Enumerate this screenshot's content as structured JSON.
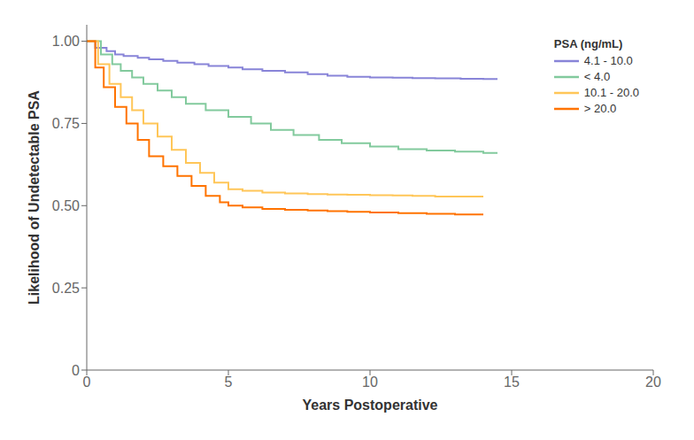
{
  "chart_data": {
    "type": "step",
    "x_label": "Years Postoperative",
    "y_label": "Likelihood of Undetectable PSA",
    "xlim": [
      0,
      20
    ],
    "ylim": [
      0,
      1.05
    ],
    "xticks": [
      0,
      5,
      10,
      15,
      20
    ],
    "yticks": [
      0,
      0.25,
      {
        "value": 0.5,
        "label": "0.50"
      },
      0.75,
      {
        "value": 1.0,
        "label": "1.00"
      }
    ],
    "grid": false,
    "legend": "upper right",
    "legend_title": "PSA (ng/mL)",
    "series": [
      {
        "name": "4.1 - 10.0",
        "color": "#8884d8",
        "x": [
          0,
          0.3,
          0.3,
          0.7,
          0.7,
          1.0,
          1.0,
          1.3,
          1.3,
          1.8,
          1.8,
          2.2,
          2.2,
          2.7,
          2.7,
          3.2,
          3.2,
          3.8,
          3.8,
          4.3,
          4.3,
          5.0,
          5.0,
          5.5,
          5.5,
          6.2,
          6.2,
          7.0,
          7.0,
          7.8,
          7.8,
          8.5,
          8.5,
          9.2,
          9.2,
          10.0,
          10.0,
          10.8,
          10.8,
          11.5,
          11.5,
          12.3,
          12.3,
          13.2,
          13.2,
          14.0,
          14.0,
          14.5
        ],
        "values": [
          1.0,
          1.0,
          0.98,
          0.98,
          0.97,
          0.97,
          0.96,
          0.96,
          0.955,
          0.955,
          0.95,
          0.95,
          0.945,
          0.945,
          0.94,
          0.94,
          0.935,
          0.935,
          0.93,
          0.93,
          0.925,
          0.925,
          0.92,
          0.92,
          0.915,
          0.915,
          0.91,
          0.91,
          0.905,
          0.905,
          0.9,
          0.9,
          0.895,
          0.895,
          0.892,
          0.892,
          0.89,
          0.89,
          0.889,
          0.889,
          0.888,
          0.888,
          0.887,
          0.887,
          0.886,
          0.886,
          0.885,
          0.885
        ]
      },
      {
        "name": "< 4.0",
        "color": "#82ca9d",
        "x": [
          0,
          0.5,
          0.5,
          0.9,
          0.9,
          1.2,
          1.2,
          1.6,
          1.6,
          2.0,
          2.0,
          2.5,
          2.5,
          3.0,
          3.0,
          3.5,
          3.5,
          4.2,
          4.2,
          5.0,
          5.0,
          5.8,
          5.8,
          6.5,
          6.5,
          7.3,
          7.3,
          8.2,
          8.2,
          9.0,
          9.0,
          10.0,
          10.0,
          11.0,
          11.0,
          12.0,
          12.0,
          13.0,
          13.0,
          14.0,
          14.0,
          14.5
        ],
        "values": [
          1.0,
          1.0,
          0.96,
          0.96,
          0.93,
          0.93,
          0.91,
          0.91,
          0.89,
          0.89,
          0.87,
          0.87,
          0.85,
          0.85,
          0.83,
          0.83,
          0.81,
          0.81,
          0.79,
          0.79,
          0.77,
          0.77,
          0.75,
          0.75,
          0.73,
          0.73,
          0.715,
          0.715,
          0.7,
          0.7,
          0.69,
          0.69,
          0.68,
          0.68,
          0.672,
          0.672,
          0.668,
          0.668,
          0.664,
          0.664,
          0.66,
          0.66
        ]
      },
      {
        "name": "10.1 - 20.0",
        "color": "#ffc658",
        "x": [
          0,
          0.4,
          0.4,
          0.8,
          0.8,
          1.2,
          1.2,
          1.6,
          1.6,
          2.0,
          2.0,
          2.5,
          2.5,
          3.0,
          3.0,
          3.5,
          3.5,
          4.0,
          4.0,
          4.5,
          4.5,
          5.0,
          5.0,
          5.5,
          5.5,
          6.2,
          6.2,
          7.0,
          7.0,
          7.8,
          7.8,
          8.5,
          8.5,
          9.2,
          9.2,
          10.0,
          10.0,
          10.8,
          10.8,
          11.5,
          11.5,
          12.3,
          12.3,
          14.0
        ],
        "values": [
          1.0,
          1.0,
          0.93,
          0.93,
          0.87,
          0.87,
          0.83,
          0.83,
          0.79,
          0.79,
          0.75,
          0.75,
          0.71,
          0.71,
          0.67,
          0.67,
          0.63,
          0.63,
          0.6,
          0.6,
          0.57,
          0.57,
          0.55,
          0.55,
          0.545,
          0.545,
          0.54,
          0.54,
          0.537,
          0.537,
          0.535,
          0.535,
          0.534,
          0.534,
          0.533,
          0.533,
          0.532,
          0.532,
          0.531,
          0.531,
          0.53,
          0.53,
          0.528,
          0.528
        ]
      },
      {
        "name": "> 20.0",
        "color": "#ff7300",
        "x": [
          0,
          0.3,
          0.3,
          0.6,
          0.6,
          1.0,
          1.0,
          1.4,
          1.4,
          1.8,
          1.8,
          2.2,
          2.2,
          2.7,
          2.7,
          3.2,
          3.2,
          3.7,
          3.7,
          4.2,
          4.2,
          4.7,
          4.7,
          5.0,
          5.0,
          5.5,
          5.5,
          6.2,
          6.2,
          7.0,
          7.0,
          7.8,
          7.8,
          8.5,
          8.5,
          9.2,
          9.2,
          10.0,
          10.0,
          11.0,
          11.0,
          12.0,
          12.0,
          13.0,
          13.0,
          14.0
        ],
        "values": [
          1.0,
          1.0,
          0.92,
          0.92,
          0.86,
          0.86,
          0.8,
          0.8,
          0.75,
          0.75,
          0.7,
          0.7,
          0.65,
          0.65,
          0.62,
          0.62,
          0.59,
          0.59,
          0.56,
          0.56,
          0.53,
          0.53,
          0.51,
          0.51,
          0.5,
          0.5,
          0.495,
          0.495,
          0.49,
          0.49,
          0.487,
          0.487,
          0.485,
          0.485,
          0.483,
          0.483,
          0.481,
          0.481,
          0.479,
          0.479,
          0.477,
          0.477,
          0.475,
          0.475,
          0.473,
          0.473
        ]
      }
    ]
  }
}
